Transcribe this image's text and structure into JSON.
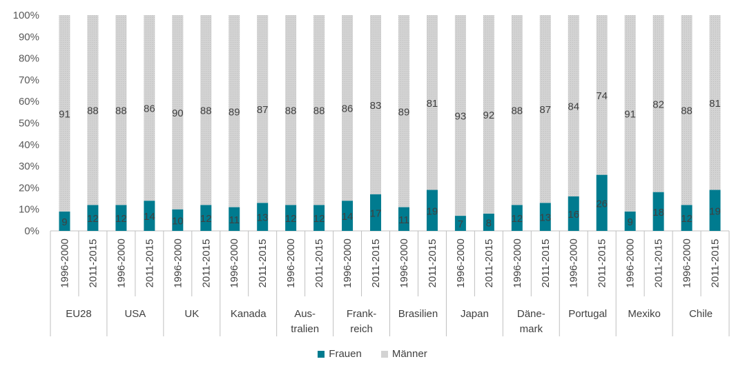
{
  "chart_data": {
    "type": "bar",
    "stacked": "percent",
    "groups": [
      "EU28",
      "USA",
      "UK",
      "Kanada",
      "Aus-\ntralien",
      "Frank-\nreich",
      "Brasilien",
      "Japan",
      "Däne-\nmark",
      "Portugal",
      "Mexiko",
      "Chile"
    ],
    "periods": [
      "1996-2000",
      "2011-2015"
    ],
    "series": [
      {
        "name": "Frauen",
        "color": "#007B8F",
        "values": [
          9,
          12,
          12,
          14,
          10,
          12,
          11,
          13,
          12,
          12,
          14,
          17,
          11,
          19,
          7,
          8,
          12,
          13,
          16,
          26,
          9,
          18,
          12,
          19
        ]
      },
      {
        "name": "Männer",
        "color": "#D3D3D3",
        "values": [
          91,
          88,
          88,
          86,
          90,
          88,
          89,
          87,
          88,
          88,
          86,
          83,
          89,
          81,
          93,
          92,
          88,
          87,
          84,
          74,
          91,
          82,
          88,
          81
        ]
      }
    ],
    "ylim": [
      0,
      100
    ],
    "yticks": [
      "0%",
      "10%",
      "20%",
      "30%",
      "40%",
      "50%",
      "60%",
      "70%",
      "80%",
      "90%",
      "100%"
    ],
    "grid": false,
    "legend": "bottom-center"
  }
}
